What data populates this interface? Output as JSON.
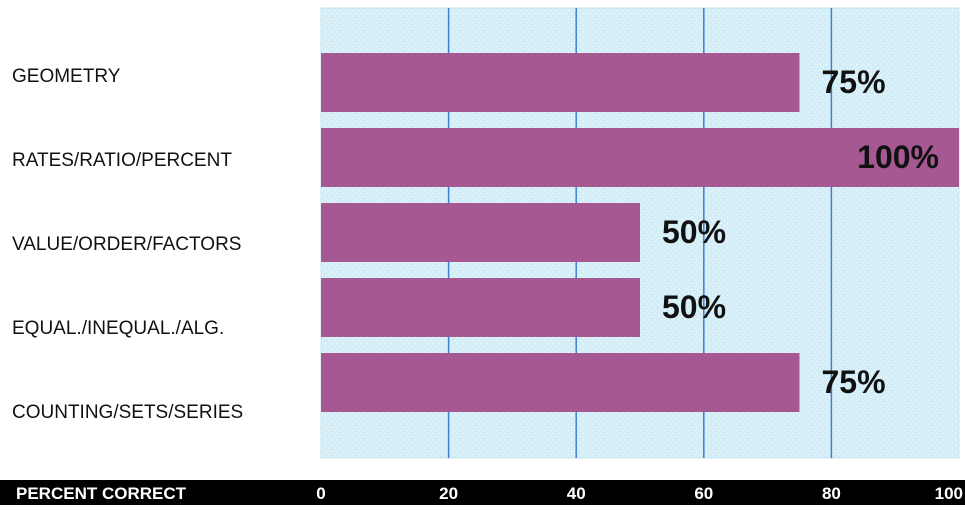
{
  "chart_data": {
    "type": "bar",
    "orientation": "horizontal",
    "categories": [
      "GEOMETRY",
      "RATES/RATIO/PERCENT",
      "VALUE/ORDER/FACTORS",
      "EQUAL./INEQUAL./ALG.",
      "COUNTING/SETS/SERIES"
    ],
    "values": [
      75,
      100,
      50,
      50,
      75
    ],
    "value_labels": [
      "75%",
      "100%",
      "50%",
      "50%",
      "75%"
    ],
    "xlabel": "PERCENT CORRECT",
    "ylabel": "",
    "xlim": [
      0,
      100
    ],
    "xticks": [
      "0",
      "20",
      "40",
      "60",
      "80",
      "100"
    ],
    "grid": true,
    "legend": "none",
    "colors": {
      "bar": "#a65893",
      "plot_background": "#d4eef7",
      "gridline": "#3f7fcf",
      "axis_band": "#000000",
      "axis_text": "#ffffff",
      "label_text": "#111111"
    }
  }
}
